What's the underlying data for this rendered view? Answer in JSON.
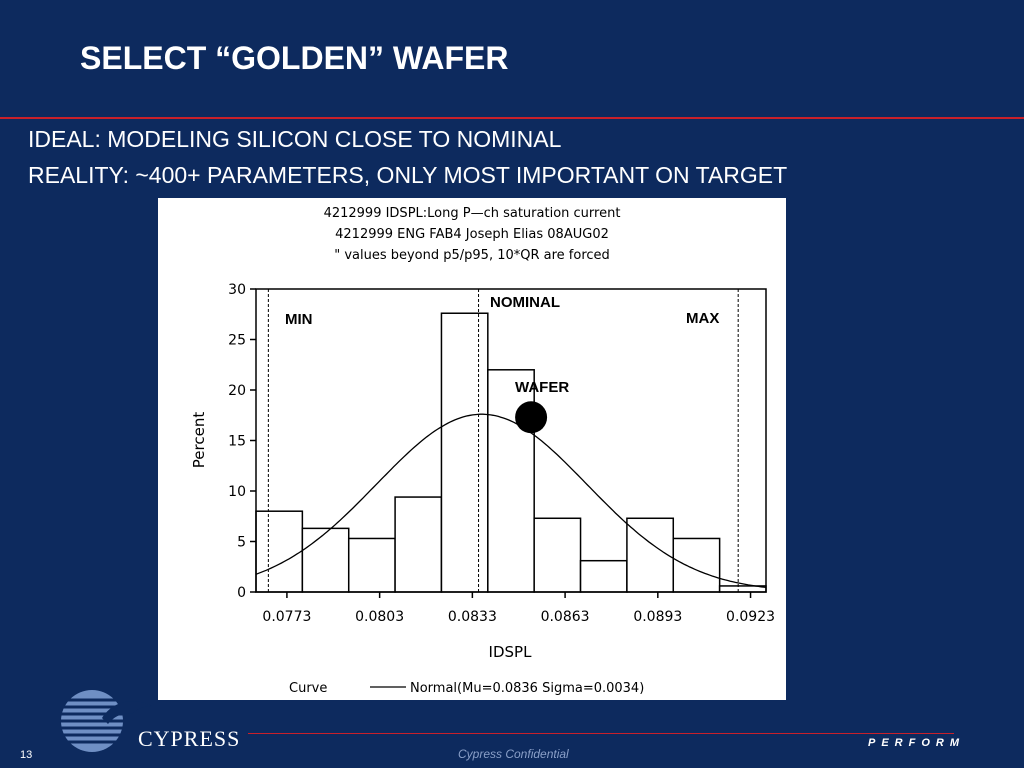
{
  "slide": {
    "title": "SELECT “GOLDEN” WAFER",
    "bullets": [
      "IDEAL: MODELING SILICON CLOSE TO NOMINAL",
      "REALITY:  ~400+ PARAMETERS, ONLY MOST IMPORTANT ON TARGET"
    ],
    "footer_confidential": "Cypress Confidential",
    "footer_perform": "PERFORM",
    "page_number": "13",
    "logo_text": "CYPRESS"
  },
  "chart_data": {
    "type": "bar",
    "header_lines": [
      "4212999 IDSPL:Long P—ch saturation current",
      "4212999 ENG FAB4 Joseph Elias 08AUG02",
      "\" values beyond p5/p95, 10*QR are forced"
    ],
    "xlabel": "IDSPL",
    "ylabel": "Percent",
    "xlim": [
      0.0763,
      0.0928
    ],
    "ylim": [
      0,
      30
    ],
    "x_ticks": [
      0.0773,
      0.0803,
      0.0833,
      0.0863,
      0.0893,
      0.0923
    ],
    "x_tick_labels": [
      "0.0773",
      "0.0803",
      "0.0833",
      "0.0863",
      "0.0893",
      "0.0923"
    ],
    "y_ticks": [
      0,
      5,
      10,
      15,
      20,
      25,
      30
    ],
    "bins": [
      {
        "start": 0.0763,
        "end": 0.0778,
        "value": 8
      },
      {
        "start": 0.0778,
        "end": 0.0793,
        "value": 6.3
      },
      {
        "start": 0.0793,
        "end": 0.0808,
        "value": 5.3
      },
      {
        "start": 0.0808,
        "end": 0.0823,
        "value": 9.4
      },
      {
        "start": 0.0823,
        "end": 0.0838,
        "value": 27.6
      },
      {
        "start": 0.0838,
        "end": 0.0853,
        "value": 22
      },
      {
        "start": 0.0853,
        "end": 0.0868,
        "value": 7.3
      },
      {
        "start": 0.0868,
        "end": 0.0883,
        "value": 3.1
      },
      {
        "start": 0.0883,
        "end": 0.0898,
        "value": 7.3
      },
      {
        "start": 0.0898,
        "end": 0.0913,
        "value": 5.3
      },
      {
        "start": 0.0913,
        "end": 0.0928,
        "value": 0.6
      }
    ],
    "normal_curve": {
      "mu": 0.0836,
      "sigma": 0.0034
    },
    "reference_lines": [
      {
        "x": 0.0767,
        "style": "dashed"
      },
      {
        "x": 0.0835,
        "style": "dashed"
      },
      {
        "x": 0.0919,
        "style": "dashed"
      }
    ],
    "annotations": {
      "min": "MIN",
      "max": "MAX",
      "nominal": "NOMINAL",
      "wafer": "WAFER"
    },
    "wafer_point": {
      "x": 0.0852,
      "y": 17.3
    },
    "legend": {
      "label": "Curve",
      "entry": "Normal(Mu=0.0836 Sigma=0.0034)",
      "position": "bottom"
    }
  }
}
